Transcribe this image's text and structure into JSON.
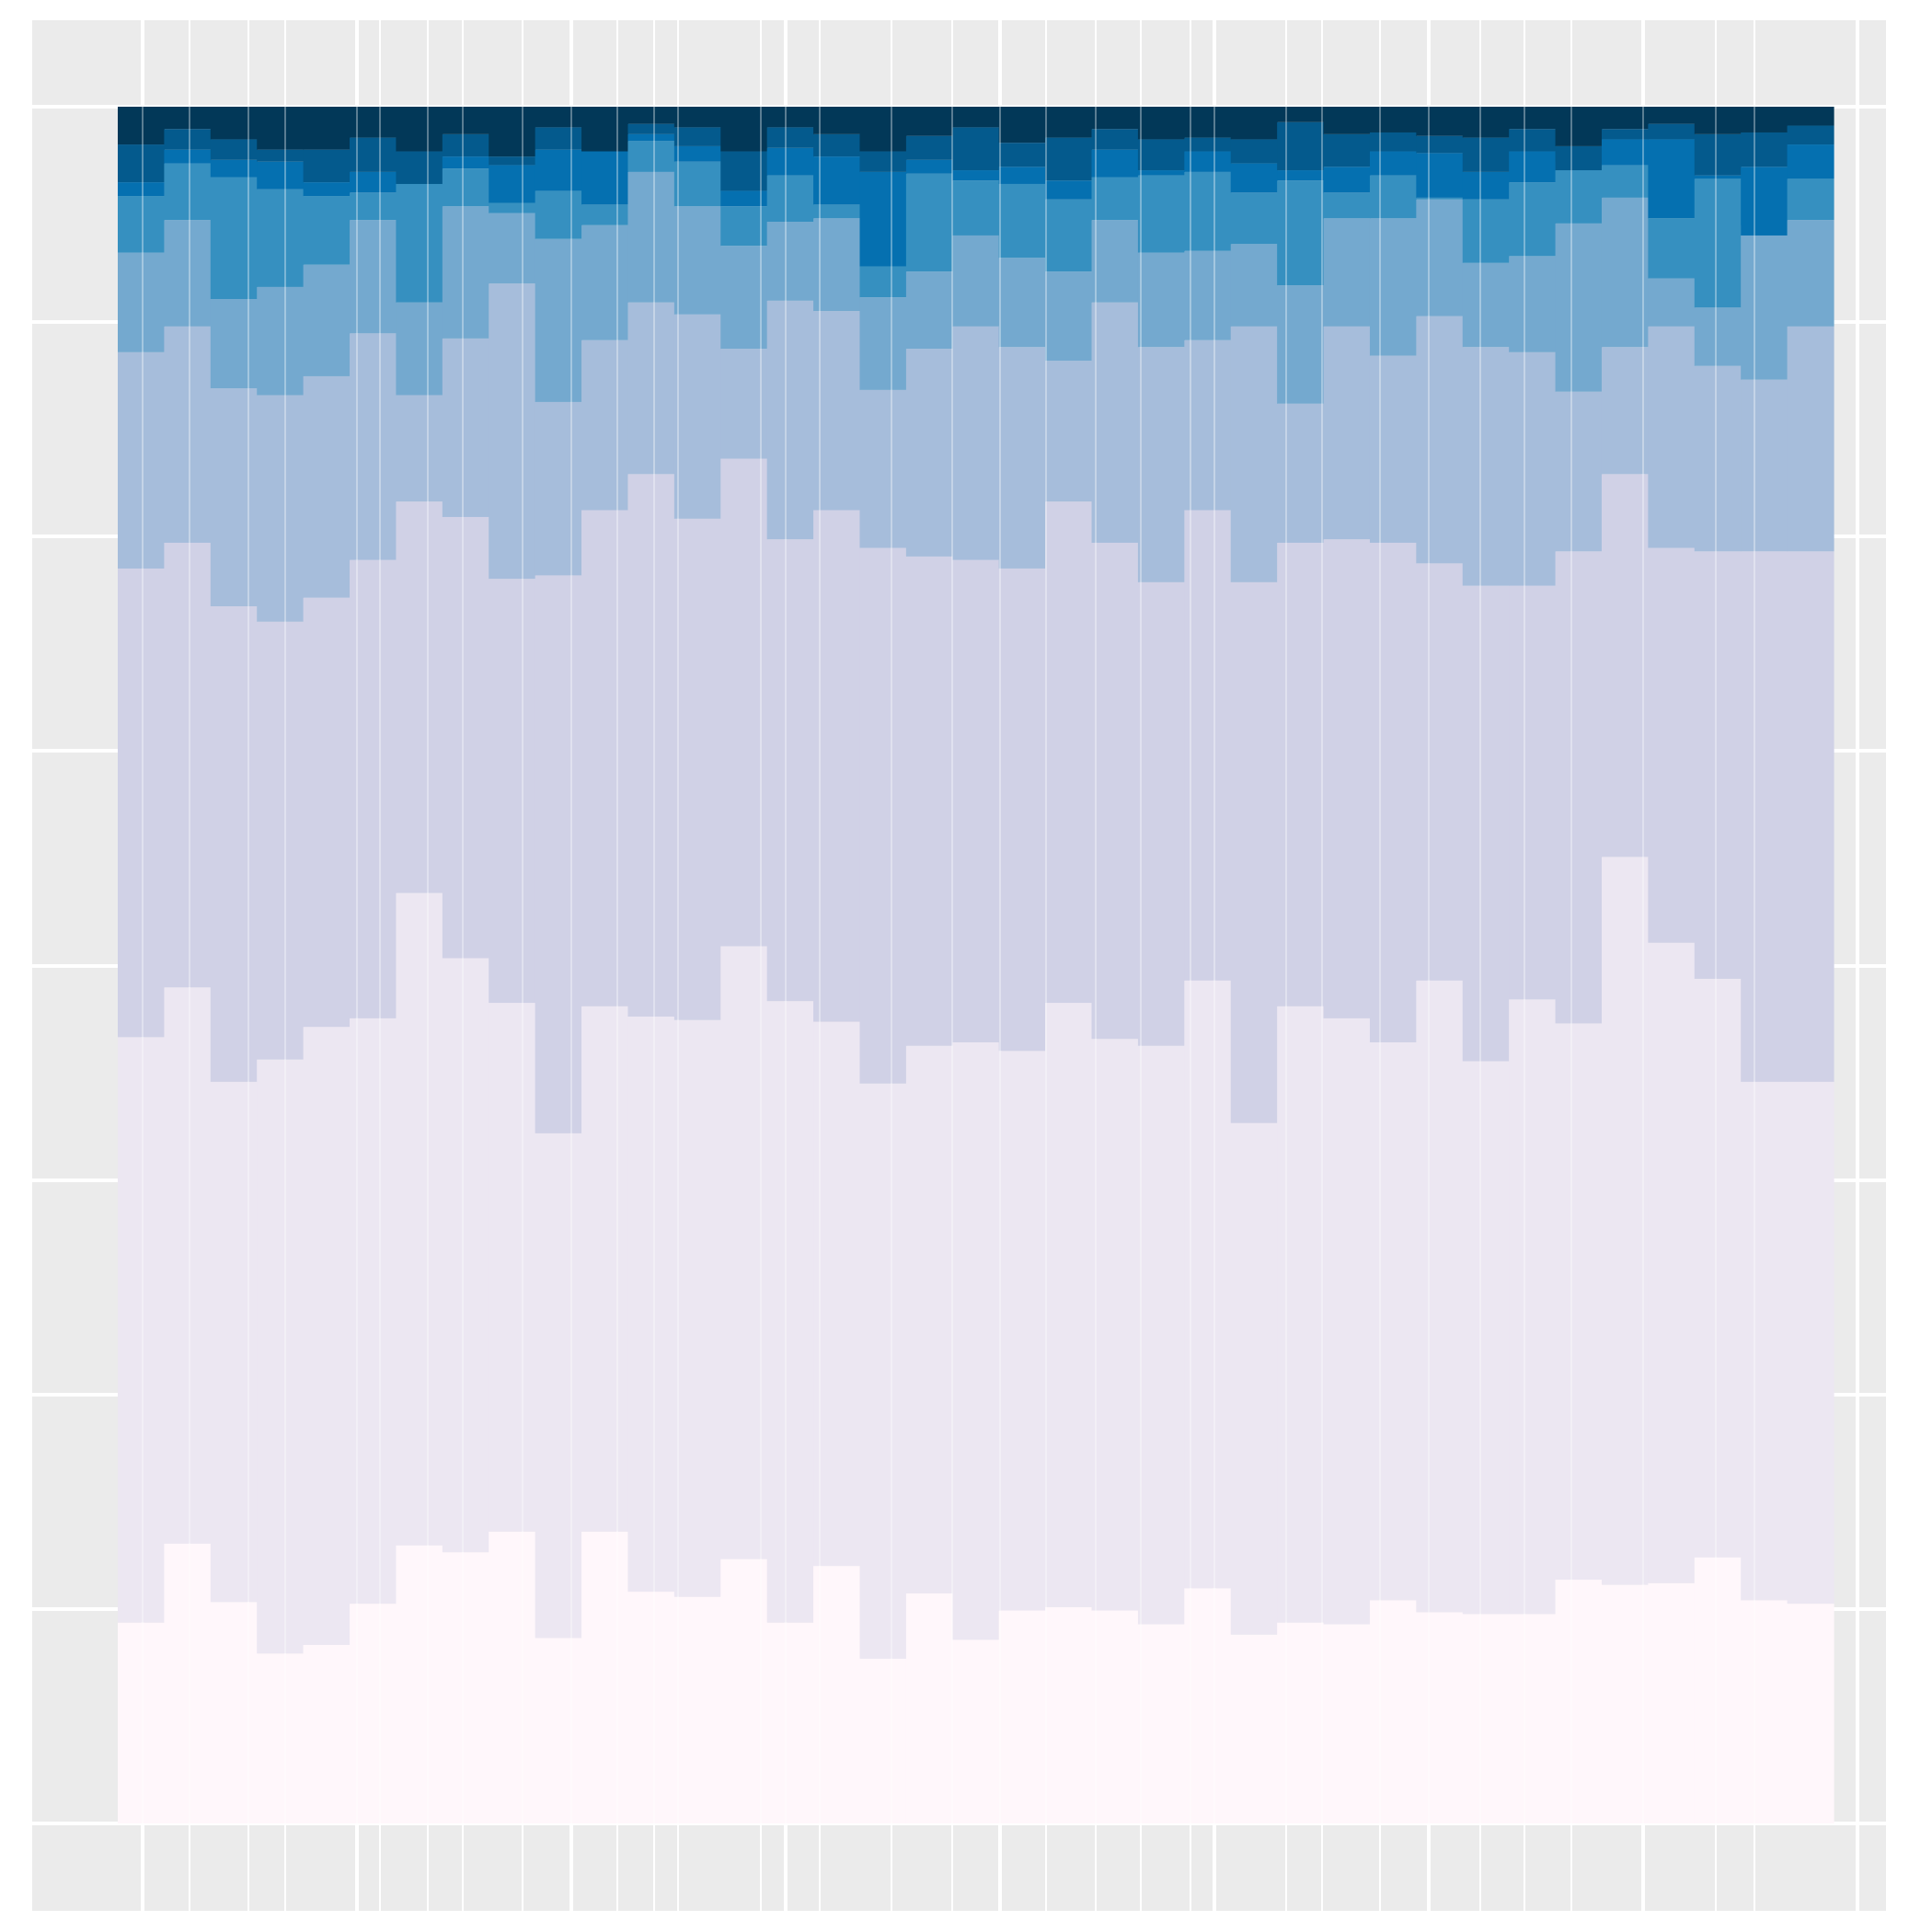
{
  "chart_data": {
    "type": "bar",
    "stacked": true,
    "normalized": true,
    "bar_count": 37,
    "title": "",
    "xlabel": "",
    "ylabel": "",
    "ylim": [
      0,
      1
    ],
    "grid": true,
    "legend": "none",
    "series_colors": [
      "#fff7fb",
      "#ece7f2",
      "#d0d1e6",
      "#a6bddb",
      "#74a9cf",
      "#3690c0",
      "#0570b0",
      "#045a8d",
      "#023858"
    ],
    "boundaries": [
      [
        0.117,
        0.163,
        0.129,
        0.099,
        0.104,
        0.128,
        0.162,
        0.158,
        0.17,
        0.108,
        0.17,
        0.135,
        0.132,
        0.154,
        0.117,
        0.15,
        0.096,
        0.134,
        0.107,
        0.124,
        0.126,
        0.124,
        0.116,
        0.137,
        0.11,
        0.117,
        0.116,
        0.13,
        0.123,
        0.122,
        0.122,
        0.142,
        0.139,
        0.14,
        0.155,
        0.13,
        0.128
      ],
      [
        0.458,
        0.487,
        0.432,
        0.445,
        0.464,
        0.469,
        0.542,
        0.504,
        0.478,
        0.402,
        0.476,
        0.47,
        0.468,
        0.511,
        0.479,
        0.467,
        0.431,
        0.453,
        0.455,
        0.45,
        0.478,
        0.457,
        0.453,
        0.491,
        0.408,
        0.476,
        0.469,
        0.455,
        0.491,
        0.444,
        0.48,
        0.466,
        0.563,
        0.513,
        0.492,
        0.432,
        0.432
      ],
      [
        0.731,
        0.746,
        0.709,
        0.7,
        0.714,
        0.736,
        0.77,
        0.761,
        0.725,
        0.727,
        0.765,
        0.786,
        0.76,
        0.795,
        0.748,
        0.765,
        0.743,
        0.738,
        0.736,
        0.731,
        0.77,
        0.746,
        0.723,
        0.765,
        0.723,
        0.746,
        0.748,
        0.746,
        0.734,
        0.721,
        0.721,
        0.741,
        0.786,
        0.743,
        0.741,
        0.741,
        0.741
      ],
      [
        0.857,
        0.872,
        0.836,
        0.832,
        0.843,
        0.868,
        0.832,
        0.865,
        0.897,
        0.828,
        0.864,
        0.886,
        0.879,
        0.859,
        0.887,
        0.881,
        0.835,
        0.859,
        0.872,
        0.86,
        0.852,
        0.886,
        0.86,
        0.864,
        0.872,
        0.827,
        0.872,
        0.855,
        0.878,
        0.86,
        0.857,
        0.834,
        0.86,
        0.872,
        0.849,
        0.841,
        0.872
      ],
      [
        0.915,
        0.934,
        0.888,
        0.895,
        0.908,
        0.934,
        0.886,
        0.942,
        0.938,
        0.923,
        0.931,
        0.962,
        0.942,
        0.919,
        0.933,
        0.935,
        0.889,
        0.904,
        0.925,
        0.912,
        0.904,
        0.934,
        0.915,
        0.916,
        0.92,
        0.896,
        0.935,
        0.935,
        0.946,
        0.909,
        0.913,
        0.932,
        0.947,
        0.9,
        0.883,
        0.931,
        0.934
      ],
      [
        0.948,
        0.967,
        0.959,
        0.952,
        0.948,
        0.95,
        0.957,
        0.964,
        0.944,
        0.951,
        0.943,
        0.98,
        0.968,
        0.942,
        0.96,
        0.943,
        0.907,
        0.961,
        0.957,
        0.955,
        0.946,
        0.959,
        0.96,
        0.962,
        0.95,
        0.957,
        0.95,
        0.96,
        0.947,
        0.946,
        0.956,
        0.968,
        0.966,
        0.935,
        0.958,
        0.925,
        0.958
      ],
      [
        0.956,
        0.975,
        0.969,
        0.968,
        0.956,
        0.962,
        0.955,
        0.971,
        0.966,
        0.975,
        0.975,
        0.984,
        0.977,
        0.951,
        0.976,
        0.971,
        0.962,
        0.969,
        0.963,
        0.965,
        0.957,
        0.975,
        0.963,
        0.974,
        0.967,
        0.963,
        0.965,
        0.974,
        0.973,
        0.962,
        0.974,
        0.963,
        0.981,
        0.981,
        0.96,
        0.965,
        0.978
      ],
      [
        0.978,
        0.987,
        0.981,
        0.975,
        0.975,
        0.982,
        0.974,
        0.984,
        0.971,
        0.988,
        0.974,
        0.99,
        0.988,
        0.974,
        0.988,
        0.984,
        0.974,
        0.983,
        0.988,
        0.979,
        0.982,
        0.987,
        0.981,
        0.982,
        0.981,
        0.991,
        0.984,
        0.985,
        0.983,
        0.982,
        0.987,
        0.977,
        0.987,
        0.99,
        0.984,
        0.985,
        0.989
      ],
      [
        1,
        1,
        1,
        1,
        1,
        1,
        1,
        1,
        1,
        1,
        1,
        1,
        1,
        1,
        1,
        1,
        1,
        1,
        1,
        1,
        1,
        1,
        1,
        1,
        1,
        1,
        1,
        1,
        1,
        1,
        1,
        1,
        1,
        1,
        1,
        1,
        1
      ]
    ]
  }
}
